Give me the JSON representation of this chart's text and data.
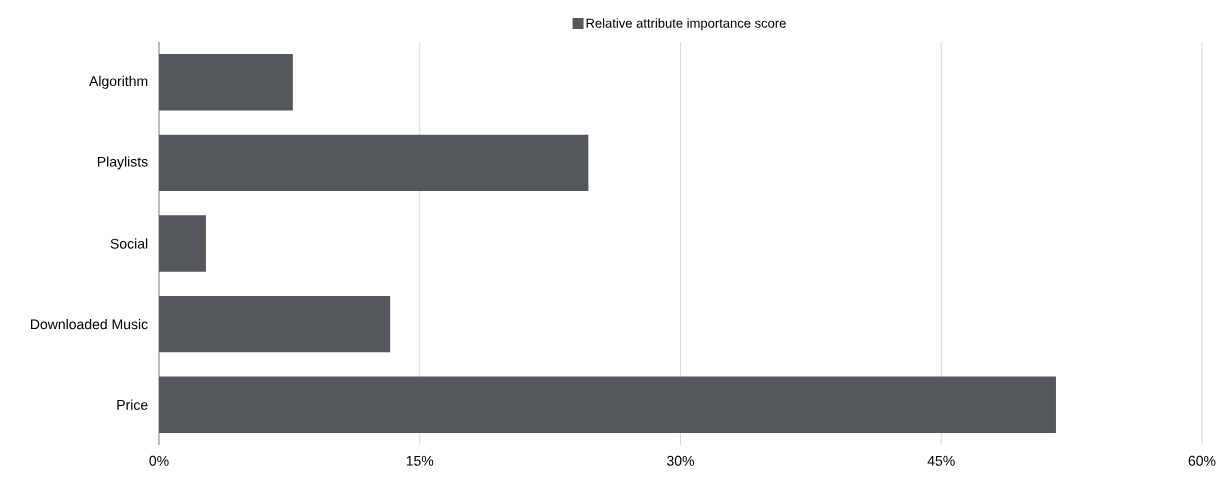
{
  "chart_data": {
    "type": "bar",
    "orientation": "horizontal",
    "categories": [
      "Algorithm",
      "Playlists",
      "Social",
      "Downloaded Music",
      "Price"
    ],
    "series": [
      {
        "name": "Relative attribute importance score",
        "color": "#54585d",
        "values": [
          7.7,
          24.7,
          2.7,
          13.3,
          51.6
        ]
      }
    ],
    "xlim": [
      0,
      60
    ],
    "xticks": [
      {
        "value": 0,
        "label": "0%"
      },
      {
        "value": 15,
        "label": "15%"
      },
      {
        "value": 30,
        "label": "30%"
      },
      {
        "value": 45,
        "label": "45%"
      },
      {
        "value": 60,
        "label": "60%"
      }
    ],
    "grid": "x",
    "legend": "top"
  }
}
